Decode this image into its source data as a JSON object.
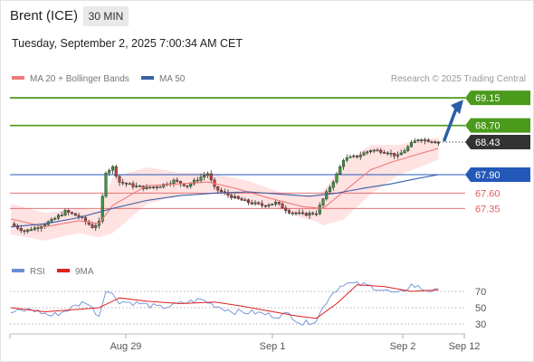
{
  "header": {
    "instrument": "Brent (ICE)",
    "timeframe": "30 MIN"
  },
  "timestamp": "Tuesday, September 2, 2025 7:00:34 AM CET",
  "credit": "Research © 2025 Trading Central",
  "colors": {
    "resistance": "#4a9a1c",
    "pivot": "#2458b8",
    "support": "#e06060",
    "last": "#333333",
    "bollinger_fill": "#ffd8d8",
    "ma20": "#f07a7a",
    "ma50": "#3c5fa8",
    "rsi": "#6b8fd6",
    "rsi_ma": "#e02020",
    "arrow": "#2a5fa8"
  },
  "chart_data": [
    {
      "type": "candlestick",
      "legend": [
        {
          "label": "MA 20 + Bollinger Bands",
          "color": "#f07a7a"
        },
        {
          "label": "MA 50",
          "color": "#3c5fa8"
        }
      ],
      "levels": [
        {
          "label": "69.15",
          "value": 69.15,
          "kind": "resistance"
        },
        {
          "label": "68.70",
          "value": 68.7,
          "kind": "resistance"
        },
        {
          "label": "68.43",
          "value": 68.43,
          "kind": "last"
        },
        {
          "label": "67.90",
          "value": 67.9,
          "kind": "pivot"
        },
        {
          "label": "67.60",
          "value": 67.6,
          "kind": "support"
        },
        {
          "label": "67.35",
          "value": 67.35,
          "kind": "support"
        }
      ],
      "x_tick_labels": [
        "Aug 29",
        "Sep 1",
        "Sep 2",
        "Sep 12"
      ],
      "price_path": [
        [
          0,
          67.1
        ],
        [
          4,
          66.98
        ],
        [
          8,
          67.05
        ],
        [
          12,
          67.15
        ],
        [
          16,
          67.3
        ],
        [
          20,
          67.22
        ],
        [
          24,
          67.05
        ],
        [
          26,
          67.12
        ],
        [
          28,
          67.95
        ],
        [
          30,
          68.02
        ],
        [
          32,
          67.78
        ],
        [
          36,
          67.72
        ],
        [
          40,
          67.68
        ],
        [
          44,
          67.72
        ],
        [
          48,
          67.8
        ],
        [
          52,
          67.72
        ],
        [
          56,
          67.86
        ],
        [
          58,
          67.92
        ],
        [
          60,
          67.68
        ],
        [
          62,
          67.62
        ],
        [
          66,
          67.52
        ],
        [
          70,
          67.45
        ],
        [
          74,
          67.4
        ],
        [
          78,
          67.44
        ],
        [
          82,
          67.3
        ],
        [
          86,
          67.25
        ],
        [
          90,
          67.28
        ],
        [
          92,
          67.5
        ],
        [
          94,
          67.7
        ],
        [
          96,
          67.9
        ],
        [
          98,
          68.15
        ],
        [
          102,
          68.2
        ],
        [
          106,
          68.3
        ],
        [
          110,
          68.28
        ],
        [
          114,
          68.2
        ],
        [
          118,
          68.4
        ],
        [
          120,
          68.48
        ],
        [
          124,
          68.45
        ],
        [
          126,
          68.43
        ]
      ],
      "ma20_path": [
        [
          0,
          67.18
        ],
        [
          10,
          67.05
        ],
        [
          20,
          67.15
        ],
        [
          26,
          67.1
        ],
        [
          30,
          67.4
        ],
        [
          40,
          67.72
        ],
        [
          50,
          67.75
        ],
        [
          58,
          67.78
        ],
        [
          66,
          67.68
        ],
        [
          76,
          67.52
        ],
        [
          86,
          67.38
        ],
        [
          92,
          67.35
        ],
        [
          98,
          67.62
        ],
        [
          106,
          67.98
        ],
        [
          112,
          68.1
        ],
        [
          118,
          68.2
        ],
        [
          126,
          68.33
        ]
      ],
      "ma50_path": [
        [
          0,
          67.05
        ],
        [
          10,
          67.1
        ],
        [
          20,
          67.2
        ],
        [
          30,
          67.35
        ],
        [
          40,
          67.48
        ],
        [
          50,
          67.56
        ],
        [
          60,
          67.6
        ],
        [
          70,
          67.62
        ],
        [
          80,
          67.58
        ],
        [
          88,
          67.55
        ],
        [
          96,
          67.6
        ],
        [
          104,
          67.68
        ],
        [
          112,
          67.75
        ],
        [
          120,
          67.84
        ],
        [
          126,
          67.9
        ]
      ],
      "bollinger_half_width": [
        [
          0,
          0.25
        ],
        [
          20,
          0.2
        ],
        [
          26,
          0.22
        ],
        [
          30,
          0.45
        ],
        [
          40,
          0.3
        ],
        [
          50,
          0.18
        ],
        [
          60,
          0.15
        ],
        [
          70,
          0.18
        ],
        [
          80,
          0.14
        ],
        [
          90,
          0.22
        ],
        [
          98,
          0.45
        ],
        [
          106,
          0.4
        ],
        [
          114,
          0.25
        ],
        [
          120,
          0.22
        ],
        [
          126,
          0.18
        ]
      ]
    },
    {
      "type": "line",
      "legend": [
        {
          "label": "RSI",
          "color": "#6b8fd6"
        },
        {
          "label": "9MA",
          "color": "#e02020"
        }
      ],
      "y_tick_labels": [
        "70",
        "50",
        "30"
      ],
      "y_ticks": [
        70,
        50,
        30
      ],
      "rsi_path": [
        [
          0,
          44
        ],
        [
          6,
          48
        ],
        [
          12,
          40
        ],
        [
          16,
          46
        ],
        [
          22,
          58
        ],
        [
          26,
          40
        ],
        [
          28,
          73
        ],
        [
          32,
          58
        ],
        [
          38,
          55
        ],
        [
          44,
          50
        ],
        [
          50,
          55
        ],
        [
          56,
          60
        ],
        [
          62,
          50
        ],
        [
          66,
          45
        ],
        [
          72,
          44
        ],
        [
          78,
          40
        ],
        [
          82,
          42
        ],
        [
          86,
          30
        ],
        [
          90,
          35
        ],
        [
          94,
          65
        ],
        [
          98,
          80
        ],
        [
          104,
          78
        ],
        [
          108,
          74
        ],
        [
          114,
          66
        ],
        [
          118,
          78
        ],
        [
          122,
          72
        ],
        [
          126,
          70
        ]
      ],
      "ma_path": [
        [
          0,
          50
        ],
        [
          10,
          45
        ],
        [
          20,
          48
        ],
        [
          26,
          50
        ],
        [
          32,
          62
        ],
        [
          40,
          58
        ],
        [
          50,
          55
        ],
        [
          60,
          57
        ],
        [
          68,
          52
        ],
        [
          76,
          46
        ],
        [
          84,
          40
        ],
        [
          90,
          37
        ],
        [
          96,
          55
        ],
        [
          102,
          78
        ],
        [
          110,
          76
        ],
        [
          118,
          70
        ],
        [
          126,
          72
        ]
      ]
    }
  ]
}
